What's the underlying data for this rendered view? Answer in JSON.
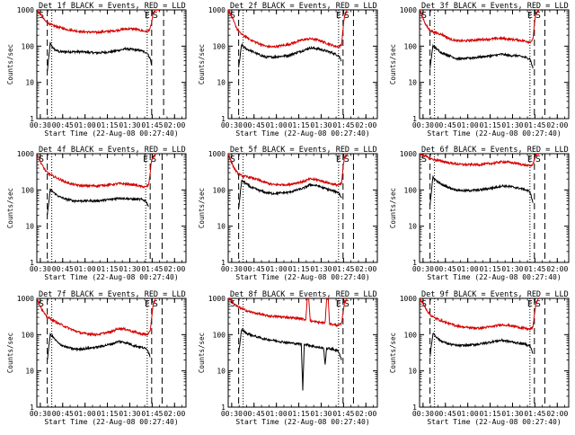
{
  "chart_data": {
    "type": "line",
    "colors": {
      "events": "#000000",
      "lld": "#d40000",
      "axes": "#000000"
    },
    "shared": {
      "xlabel": "Start Time (22-Aug-08 00:27:40)",
      "ylabel": "Counts/sec",
      "xticks": [
        "00:30",
        "00:45",
        "01:00",
        "01:15",
        "01:30",
        "01:45",
        "02:00"
      ],
      "xtick_minutes": [
        2.33,
        17.33,
        32.33,
        47.33,
        62.33,
        77.33,
        92.33
      ],
      "xlim_minutes": [
        0,
        100
      ],
      "yscale": "log",
      "ylim": [
        1,
        1000
      ],
      "yticks": [
        "1",
        "10",
        "100",
        "1000"
      ],
      "yticks_values": [
        1,
        10,
        100,
        1000
      ],
      "marker_S": "S",
      "marker_E": "E",
      "series_names": [
        "Events",
        "LLD"
      ]
    },
    "panels": [
      {
        "title": "Det 1f BLACK = Events, RED = LLD",
        "dashed_minutes": [
          7,
          77,
          85
        ],
        "dotted_minutes": [
          10,
          74
        ],
        "series": [
          {
            "name": "Events",
            "x": [
              7,
              9,
              10,
              12,
              15,
              20,
              30,
              40,
              50,
              60,
              65,
              70,
              74,
              76,
              77
            ],
            "y": [
              20,
              120,
              100,
              80,
              70,
              70,
              70,
              65,
              70,
              85,
              80,
              75,
              65,
              45,
              30
            ]
          },
          {
            "name": "LLD",
            "x": [
              0,
              2,
              4,
              6,
              8,
              10,
              15,
              20,
              30,
              40,
              50,
              60,
              65,
              70,
              74,
              76,
              77,
              78,
              80,
              82
            ],
            "y": [
              1000,
              800,
              600,
              480,
              420,
              380,
              330,
              290,
              250,
              240,
              260,
              300,
              300,
              270,
              250,
              300,
              450,
              800,
              1000,
              1000
            ]
          }
        ]
      },
      {
        "title": "Det 2f BLACK = Events, RED = LLD",
        "dashed_minutes": [
          7,
          77,
          84
        ],
        "dotted_minutes": [
          10,
          74
        ],
        "series": [
          {
            "name": "Events",
            "x": [
              7,
              9,
              10,
              12,
              15,
              20,
              25,
              30,
              40,
              50,
              55,
              60,
              65,
              70,
              74,
              76
            ],
            "y": [
              25,
              110,
              100,
              85,
              75,
              60,
              50,
              50,
              55,
              75,
              90,
              85,
              75,
              65,
              55,
              40
            ]
          },
          {
            "name": "LLD",
            "x": [
              0,
              2,
              4,
              6,
              8,
              10,
              15,
              20,
              25,
              30,
              40,
              50,
              55,
              60,
              65,
              70,
              74,
              76,
              77,
              78,
              80
            ],
            "y": [
              1000,
              700,
              450,
              300,
              230,
              200,
              150,
              120,
              100,
              95,
              110,
              150,
              160,
              150,
              125,
              105,
              95,
              110,
              300,
              700,
              1000
            ]
          }
        ]
      },
      {
        "title": "Det 3f BLACK = Events, RED = LLD",
        "dashed_minutes": [
          7,
          77,
          84
        ],
        "dotted_minutes": [
          10,
          74
        ],
        "series": [
          {
            "name": "Events",
            "x": [
              7,
              9,
              10,
              12,
              15,
              20,
              25,
              30,
              40,
              50,
              55,
              60,
              65,
              70,
              74,
              76
            ],
            "y": [
              25,
              105,
              95,
              80,
              65,
              55,
              45,
              45,
              50,
              55,
              60,
              55,
              55,
              50,
              45,
              25
            ]
          },
          {
            "name": "LLD",
            "x": [
              0,
              2,
              4,
              6,
              8,
              10,
              15,
              20,
              25,
              30,
              40,
              50,
              55,
              60,
              65,
              70,
              74,
              76,
              77,
              78,
              80
            ],
            "y": [
              1000,
              650,
              400,
              300,
              260,
              240,
              210,
              160,
              140,
              140,
              150,
              160,
              165,
              155,
              150,
              140,
              130,
              150,
              400,
              800,
              1000
            ]
          }
        ]
      },
      {
        "title": "Det 4f BLACK = Events, RED = LLD",
        "dashed_minutes": [
          7,
          76,
          84
        ],
        "dotted_minutes": [
          10,
          73
        ],
        "series": [
          {
            "name": "Events",
            "x": [
              7,
              9,
              10,
              12,
              15,
              20,
              25,
              30,
              40,
              50,
              55,
              60,
              65,
              70,
              73,
              75
            ],
            "y": [
              20,
              100,
              95,
              80,
              65,
              55,
              50,
              50,
              50,
              55,
              60,
              58,
              55,
              55,
              50,
              35
            ]
          },
          {
            "name": "LLD",
            "x": [
              0,
              2,
              4,
              6,
              8,
              10,
              15,
              20,
              25,
              30,
              40,
              50,
              55,
              60,
              65,
              70,
              73,
              75,
              76,
              77,
              80
            ],
            "y": [
              1000,
              650,
              450,
              330,
              280,
              250,
              200,
              160,
              140,
              130,
              130,
              140,
              150,
              145,
              140,
              125,
              120,
              140,
              300,
              700,
              1000
            ]
          }
        ]
      },
      {
        "title": "Det 5f BLACK = Events, RED = LLD",
        "dashed_minutes": [
          7,
          77,
          84
        ],
        "dotted_minutes": [
          10,
          74
        ],
        "series": [
          {
            "name": "Events",
            "x": [
              7,
              9,
              10,
              12,
              15,
              20,
              25,
              30,
              40,
              50,
              55,
              60,
              65,
              70,
              74,
              76
            ],
            "y": [
              30,
              180,
              170,
              150,
              120,
              100,
              85,
              80,
              85,
              110,
              140,
              130,
              110,
              95,
              85,
              60
            ]
          },
          {
            "name": "LLD",
            "x": [
              0,
              2,
              4,
              6,
              8,
              10,
              15,
              20,
              25,
              30,
              40,
              50,
              55,
              60,
              65,
              70,
              74,
              76,
              77,
              78,
              80
            ],
            "y": [
              1000,
              600,
              400,
              300,
              260,
              240,
              220,
              190,
              160,
              140,
              140,
              170,
              200,
              190,
              165,
              145,
              135,
              150,
              400,
              800,
              1000
            ]
          }
        ]
      },
      {
        "title": "Det 6f BLACK = Events, RED = LLD",
        "dashed_minutes": [
          7,
          77,
          84
        ],
        "dotted_minutes": [
          10,
          74
        ],
        "series": [
          {
            "name": "Events",
            "x": [
              7,
              9,
              10,
              12,
              15,
              20,
              25,
              30,
              40,
              50,
              55,
              60,
              65,
              70,
              74,
              76
            ],
            "y": [
              40,
              230,
              200,
              170,
              140,
              115,
              100,
              95,
              100,
              115,
              130,
              125,
              115,
              105,
              90,
              45
            ]
          },
          {
            "name": "LLD",
            "x": [
              0,
              2,
              4,
              6,
              8,
              10,
              15,
              20,
              25,
              30,
              40,
              50,
              55,
              60,
              65,
              70,
              74,
              76,
              77,
              78,
              80
            ],
            "y": [
              1000,
              950,
              850,
              780,
              720,
              680,
              620,
              560,
              520,
              500,
              500,
              550,
              600,
              580,
              540,
              490,
              460,
              500,
              700,
              950,
              1000
            ]
          }
        ]
      },
      {
        "title": "Det 7f BLACK = Events, RED = LLD",
        "dashed_minutes": [
          7,
          77,
          84
        ],
        "dotted_minutes": [
          10,
          74
        ],
        "series": [
          {
            "name": "Events",
            "x": [
              7,
              9,
              10,
              12,
              15,
              20,
              25,
              30,
              40,
              50,
              55,
              60,
              65,
              70,
              74,
              76
            ],
            "y": [
              20,
              100,
              95,
              75,
              55,
              45,
              40,
              40,
              45,
              55,
              65,
              60,
              50,
              45,
              40,
              25
            ]
          },
          {
            "name": "LLD",
            "x": [
              0,
              2,
              4,
              6,
              8,
              10,
              15,
              20,
              25,
              30,
              40,
              50,
              55,
              60,
              65,
              70,
              74,
              76,
              77,
              78,
              80
            ],
            "y": [
              1000,
              650,
              450,
              330,
              290,
              260,
              200,
              160,
              130,
              110,
              100,
              120,
              150,
              140,
              120,
              105,
              100,
              120,
              300,
              700,
              1000
            ]
          }
        ]
      },
      {
        "title": "Det 8f BLACK = Events, RED = LLD",
        "dashed_minutes": [
          7,
          77,
          84
        ],
        "dotted_minutes": [
          10,
          74
        ],
        "series": [
          {
            "name": "Events",
            "x": [
              7,
              9,
              10,
              12,
              15,
              20,
              25,
              30,
              40,
              49,
              50,
              51,
              55,
              60,
              64,
              65,
              66,
              70,
              74,
              76
            ],
            "y": [
              30,
              140,
              130,
              110,
              100,
              85,
              75,
              70,
              60,
              55,
              3,
              55,
              50,
              45,
              42,
              15,
              42,
              40,
              35,
              20
            ]
          },
          {
            "name": "LLD",
            "x": [
              0,
              2,
              4,
              6,
              8,
              10,
              15,
              20,
              25,
              30,
              40,
              50,
              52,
              53,
              54,
              55,
              60,
              65,
              66,
              67,
              68,
              70,
              74,
              76,
              77,
              78,
              80
            ],
            "y": [
              1000,
              900,
              700,
              600,
              550,
              500,
              420,
              380,
              340,
              320,
              300,
              270,
              260,
              1000,
              1000,
              240,
              220,
              210,
              1000,
              1000,
              200,
              190,
              180,
              200,
              400,
              800,
              1000
            ]
          }
        ]
      },
      {
        "title": "Det 9f BLACK = Events, RED = LLD",
        "dashed_minutes": [
          7,
          77,
          84
        ],
        "dotted_minutes": [
          10,
          74
        ],
        "series": [
          {
            "name": "Events",
            "x": [
              7,
              9,
              10,
              12,
              15,
              20,
              25,
              30,
              40,
              50,
              55,
              60,
              65,
              70,
              74,
              76
            ],
            "y": [
              25,
              110,
              100,
              80,
              65,
              55,
              50,
              50,
              55,
              65,
              70,
              65,
              60,
              55,
              50,
              30
            ]
          },
          {
            "name": "LLD",
            "x": [
              0,
              2,
              4,
              6,
              8,
              10,
              15,
              20,
              25,
              30,
              40,
              50,
              55,
              60,
              65,
              70,
              74,
              76,
              77,
              78,
              80
            ],
            "y": [
              1000,
              750,
              550,
              400,
              330,
              290,
              240,
              200,
              175,
              160,
              150,
              170,
              190,
              180,
              165,
              150,
              140,
              160,
              350,
              750,
              1000
            ]
          }
        ]
      }
    ]
  }
}
